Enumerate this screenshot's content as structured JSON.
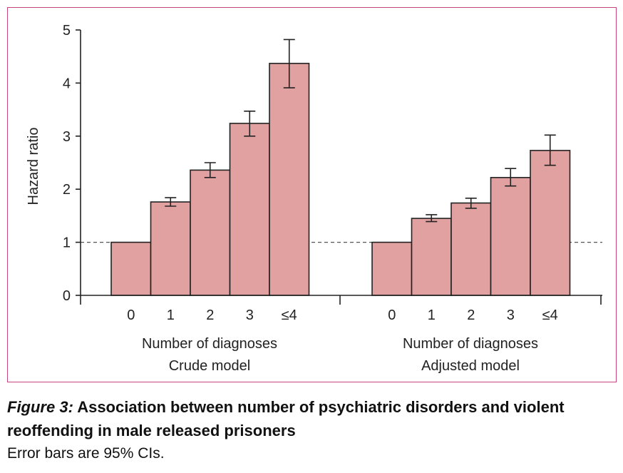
{
  "figure": {
    "label": "Figure 3:",
    "title": "Association between number of psychiatric disorders and violent reoffending in male released prisoners",
    "note": "Error bars are 95% CIs."
  },
  "colors": {
    "bar_fill": "#e0a1a0",
    "bar_stroke": "#222222",
    "frame": "#c7457e",
    "reference_line": "#555555"
  },
  "chart_data": {
    "type": "bar",
    "ylabel": "Hazard ratio",
    "ylim": [
      0,
      5
    ],
    "yticks": [
      "0",
      "1",
      "2",
      "3",
      "4",
      "5"
    ],
    "reference_line": 1,
    "reference_style": "dashed",
    "panels": [
      {
        "name": "Crude model",
        "xlabel": "Number of diagnoses",
        "categories": [
          "0",
          "1",
          "2",
          "3",
          "≤4"
        ],
        "values": [
          1,
          1.76,
          2.36,
          3.24,
          4.37
        ],
        "ci_low": [
          null,
          1.68,
          2.22,
          3.0,
          3.91
        ],
        "ci_high": [
          null,
          1.84,
          2.5,
          3.47,
          4.82
        ]
      },
      {
        "name": "Adjusted model",
        "xlabel": "Number of diagnoses",
        "categories": [
          "0",
          "1",
          "2",
          "3",
          "≤4"
        ],
        "values": [
          1,
          1.45,
          1.74,
          2.22,
          2.73
        ],
        "ci_low": [
          null,
          1.39,
          1.64,
          2.06,
          2.45
        ],
        "ci_high": [
          null,
          1.52,
          1.83,
          2.39,
          3.02
        ]
      }
    ]
  }
}
